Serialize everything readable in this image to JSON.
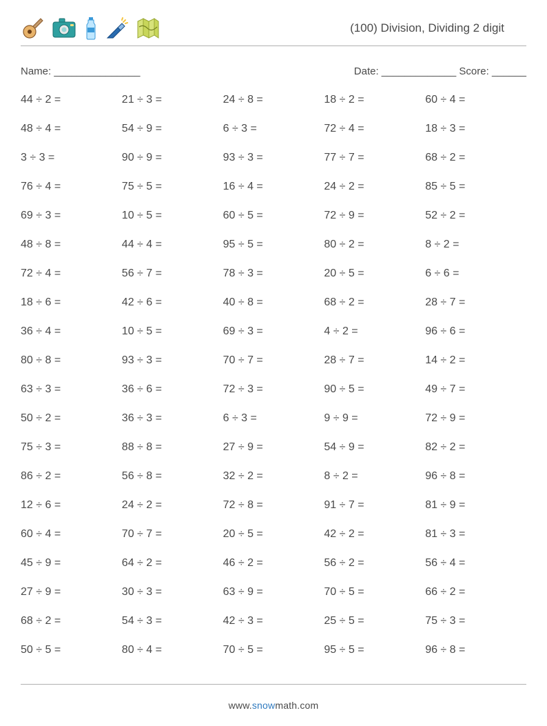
{
  "header": {
    "title": "(100) Division, Dividing 2 digit",
    "icons": [
      "guitar-icon",
      "camera-icon",
      "bottle-icon",
      "flashlight-icon",
      "map-icon"
    ]
  },
  "info": {
    "name": "Name: _______________",
    "date_score": "Date: _____________   Score: ______"
  },
  "grid": {
    "cols": 5,
    "rows": 20,
    "cell_fontsize": 16,
    "row_gap": 24,
    "text_color": "#4a4a4a",
    "background_color": "#ffffff",
    "border_color": "#b0b0b0"
  },
  "problems": [
    "44 ÷ 2 =",
    "21 ÷ 3 =",
    "24 ÷ 8 =",
    "18 ÷ 2 =",
    "60 ÷ 4 =",
    "48 ÷ 4 =",
    "54 ÷ 9 =",
    "6 ÷ 3 =",
    "72 ÷ 4 =",
    "18 ÷ 3 =",
    "3 ÷ 3 =",
    "90 ÷ 9 =",
    "93 ÷ 3 =",
    "77 ÷ 7 =",
    "68 ÷ 2 =",
    "76 ÷ 4 =",
    "75 ÷ 5 =",
    "16 ÷ 4 =",
    "24 ÷ 2 =",
    "85 ÷ 5 =",
    "69 ÷ 3 =",
    "10 ÷ 5 =",
    "60 ÷ 5 =",
    "72 ÷ 9 =",
    "52 ÷ 2 =",
    "48 ÷ 8 =",
    "44 ÷ 4 =",
    "95 ÷ 5 =",
    "80 ÷ 2 =",
    "8 ÷ 2 =",
    "72 ÷ 4 =",
    "56 ÷ 7 =",
    "78 ÷ 3 =",
    "20 ÷ 5 =",
    "6 ÷ 6 =",
    "18 ÷ 6 =",
    "42 ÷ 6 =",
    "40 ÷ 8 =",
    "68 ÷ 2 =",
    "28 ÷ 7 =",
    "36 ÷ 4 =",
    "10 ÷ 5 =",
    "69 ÷ 3 =",
    "4 ÷ 2 =",
    "96 ÷ 6 =",
    "80 ÷ 8 =",
    "93 ÷ 3 =",
    "70 ÷ 7 =",
    "28 ÷ 7 =",
    "14 ÷ 2 =",
    "63 ÷ 3 =",
    "36 ÷ 6 =",
    "72 ÷ 3 =",
    "90 ÷ 5 =",
    "49 ÷ 7 =",
    "50 ÷ 2 =",
    "36 ÷ 3 =",
    "6 ÷ 3 =",
    "9 ÷ 9 =",
    "72 ÷ 9 =",
    "75 ÷ 3 =",
    "88 ÷ 8 =",
    "27 ÷ 9 =",
    "54 ÷ 9 =",
    "82 ÷ 2 =",
    "86 ÷ 2 =",
    "56 ÷ 8 =",
    "32 ÷ 2 =",
    "8 ÷ 2 =",
    "96 ÷ 8 =",
    "12 ÷ 6 =",
    "24 ÷ 2 =",
    "72 ÷ 8 =",
    "91 ÷ 7 =",
    "81 ÷ 9 =",
    "60 ÷ 4 =",
    "70 ÷ 7 =",
    "20 ÷ 5 =",
    "42 ÷ 2 =",
    "81 ÷ 3 =",
    "45 ÷ 9 =",
    "64 ÷ 2 =",
    "46 ÷ 2 =",
    "56 ÷ 2 =",
    "56 ÷ 4 =",
    "27 ÷ 9 =",
    "30 ÷ 3 =",
    "63 ÷ 9 =",
    "70 ÷ 5 =",
    "66 ÷ 2 =",
    "68 ÷ 2 =",
    "54 ÷ 3 =",
    "42 ÷ 3 =",
    "25 ÷ 5 =",
    "75 ÷ 3 =",
    "50 ÷ 5 =",
    "80 ÷ 4 =",
    "70 ÷ 5 =",
    "95 ÷ 5 =",
    "96 ÷ 8 ="
  ],
  "footer": {
    "prefix": "www.",
    "brand": "snow",
    "suffix": "math.com",
    "brand_color": "#2f7abf"
  }
}
